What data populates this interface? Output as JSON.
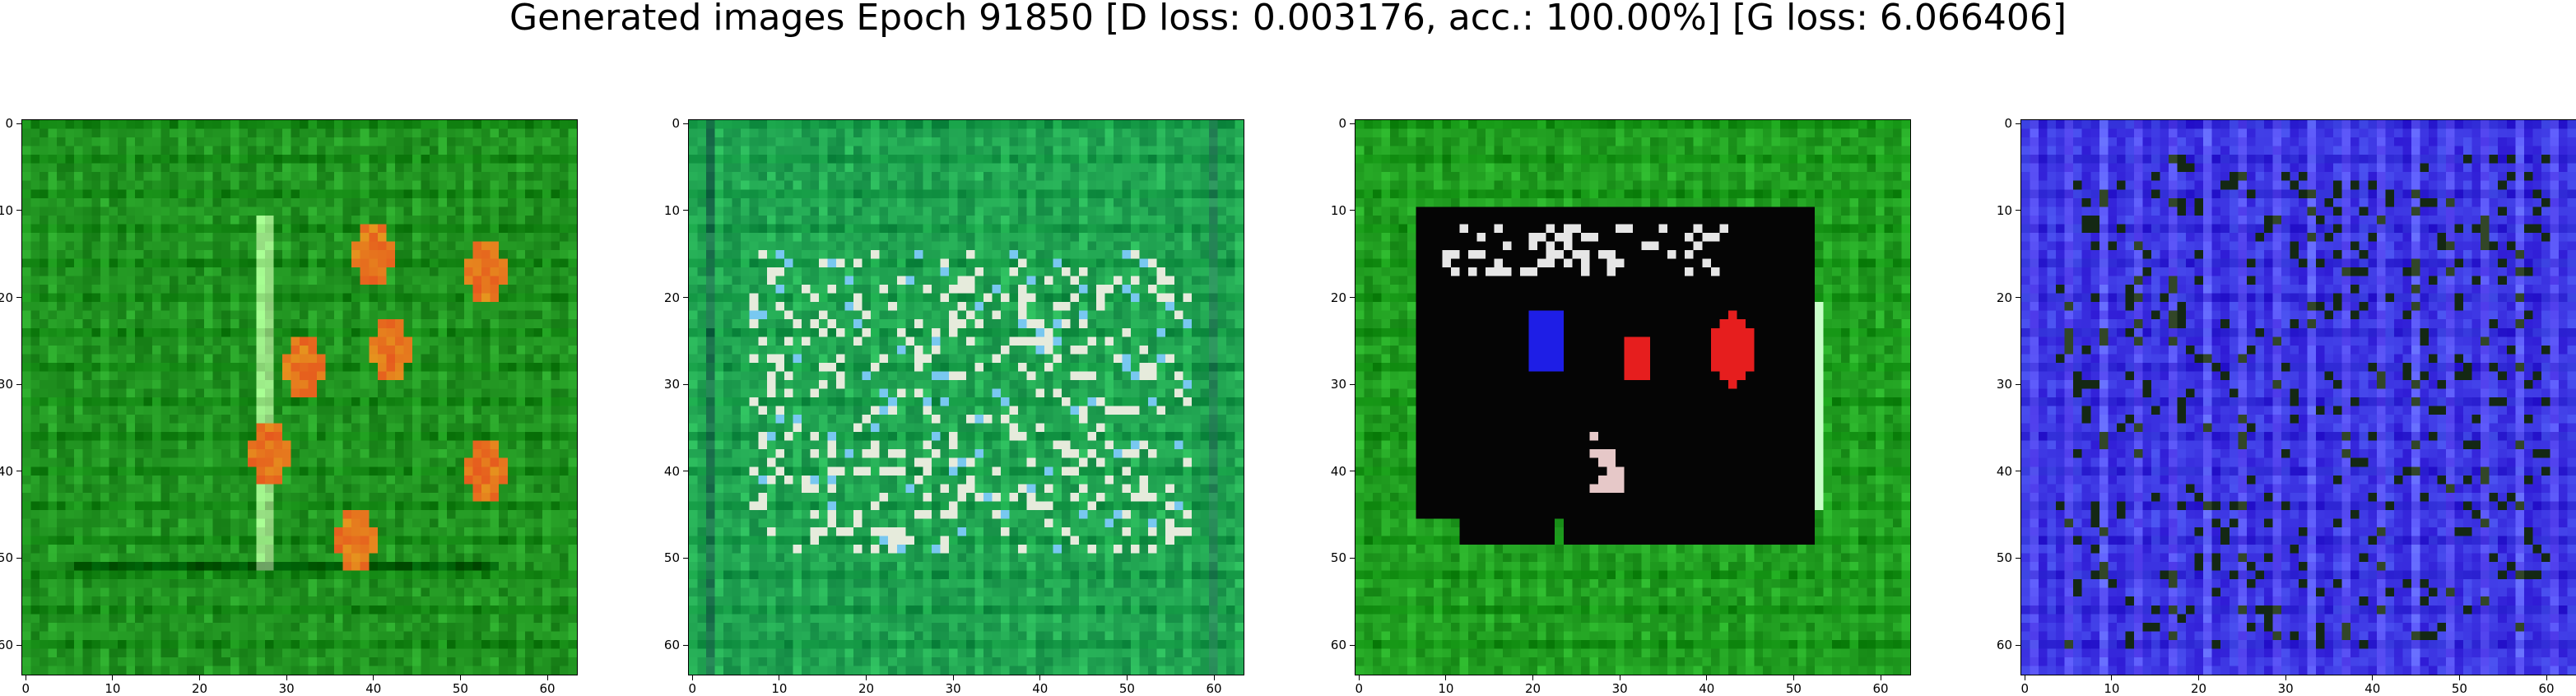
{
  "figure": {
    "title": "Generated images Epoch 91850 [D loss: 0.003176, acc.: 100.00%] [G loss: 6.066406]"
  },
  "axis": {
    "range": [
      0,
      64
    ],
    "x_ticks": [
      "0",
      "10",
      "20",
      "30",
      "40",
      "50",
      "60"
    ],
    "y_ticks": [
      "0",
      "10",
      "20",
      "30",
      "40",
      "50",
      "60"
    ]
  },
  "panels": [
    {
      "name": "generated-image-1",
      "base_color": "#1f8f1f",
      "description_colors": [
        "#2aa52a",
        "#e85a1a",
        "#f0e0c0"
      ]
    },
    {
      "name": "generated-image-2",
      "base_color": "#1fa050",
      "description_colors": [
        "#30c070",
        "#a0d8f0",
        "#f0f0e0"
      ]
    },
    {
      "name": "generated-image-3",
      "base_color": "#1f9a1f",
      "description_colors": [
        "#000000",
        "#2020e0",
        "#e02020"
      ]
    },
    {
      "name": "generated-image-4",
      "base_color": "#3a30e0",
      "description_colors": [
        "#6a60ff",
        "#202020",
        "#8080ff"
      ]
    }
  ]
}
